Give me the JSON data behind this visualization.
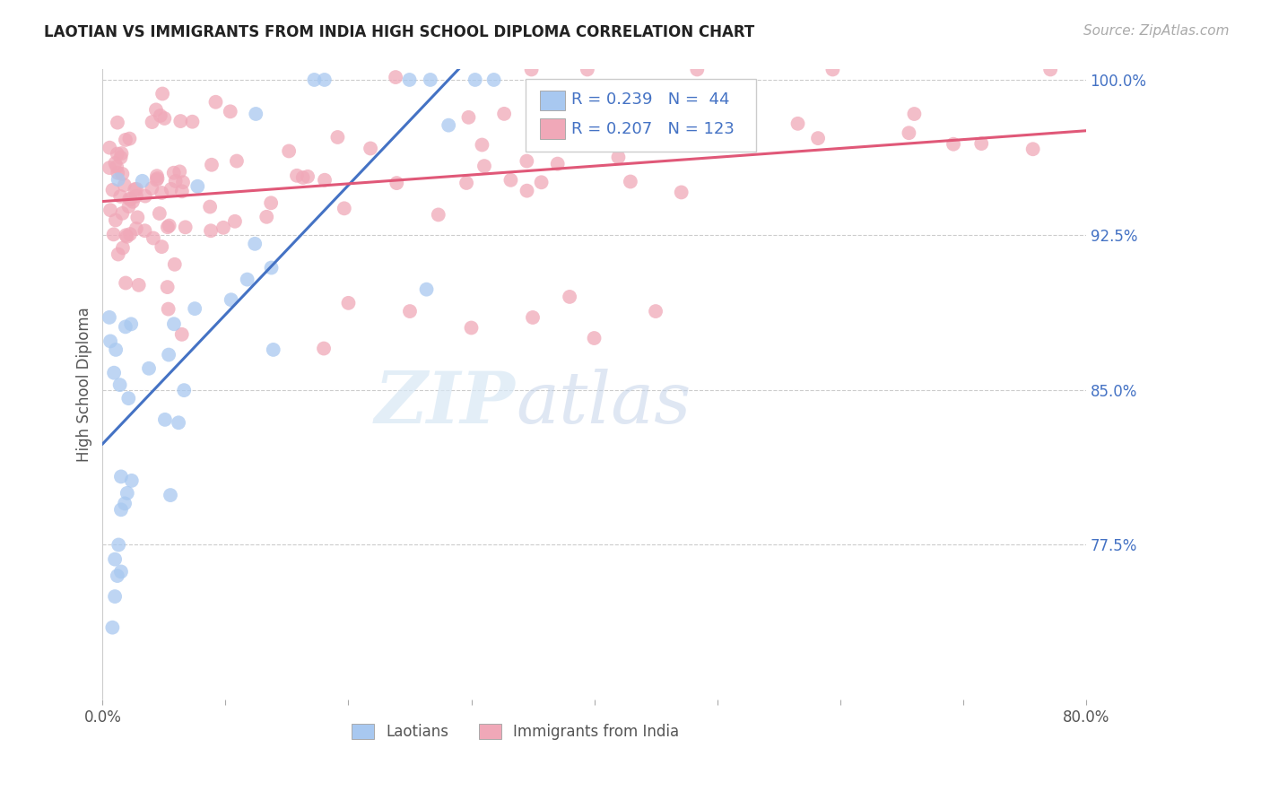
{
  "title": "LAOTIAN VS IMMIGRANTS FROM INDIA HIGH SCHOOL DIPLOMA CORRELATION CHART",
  "source": "Source: ZipAtlas.com",
  "ylabel": "High School Diploma",
  "x_min": 0.0,
  "x_max": 0.8,
  "y_min": 0.7,
  "y_max": 1.005,
  "y_tick_labels_right": [
    "100.0%",
    "92.5%",
    "85.0%",
    "77.5%"
  ],
  "y_tick_vals_right": [
    1.0,
    0.925,
    0.85,
    0.775
  ],
  "legend_labels": [
    "Laotians",
    "Immigrants from India"
  ],
  "laotian_color": "#a8c8f0",
  "india_color": "#f0a8b8",
  "laotian_line_color": "#4472c4",
  "india_line_color": "#e05878",
  "R_laotian": 0.239,
  "N_laotian": 44,
  "R_india": 0.207,
  "N_india": 123,
  "watermark_zip": "ZIP",
  "watermark_atlas": "atlas",
  "title_fontsize": 12,
  "axis_label_fontsize": 12,
  "tick_fontsize": 12,
  "legend_fontsize": 12,
  "source_fontsize": 11
}
